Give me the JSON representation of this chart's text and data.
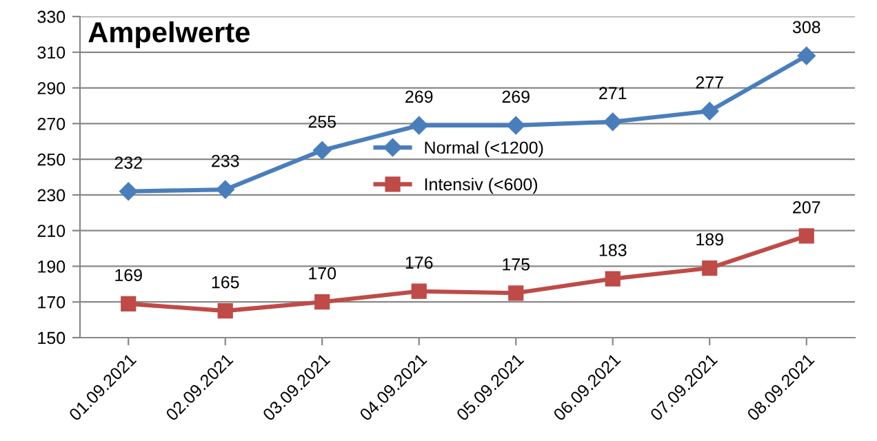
{
  "chart_data": {
    "type": "line",
    "title": "Ampelwerte",
    "categories": [
      "01.09.2021",
      "02.09.2021",
      "03.09.2021",
      "04.09.2021",
      "05.09.2021",
      "06.09.2021",
      "07.09.2021",
      "08.09.2021"
    ],
    "series": [
      {
        "name": "Normal (<1200)",
        "color": "#4a7ebb",
        "marker": "diamond",
        "values": [
          232,
          233,
          255,
          269,
          269,
          271,
          277,
          308
        ]
      },
      {
        "name": "Intensiv (<600)",
        "color": "#be4b48",
        "marker": "square",
        "values": [
          169,
          165,
          170,
          176,
          175,
          183,
          189,
          207
        ]
      }
    ],
    "ylim": [
      150,
      330
    ],
    "yticks": [
      150,
      170,
      190,
      210,
      230,
      250,
      270,
      290,
      310,
      330
    ],
    "grid": "y",
    "legend": "center",
    "data_labels": true,
    "line_style": "solid"
  }
}
